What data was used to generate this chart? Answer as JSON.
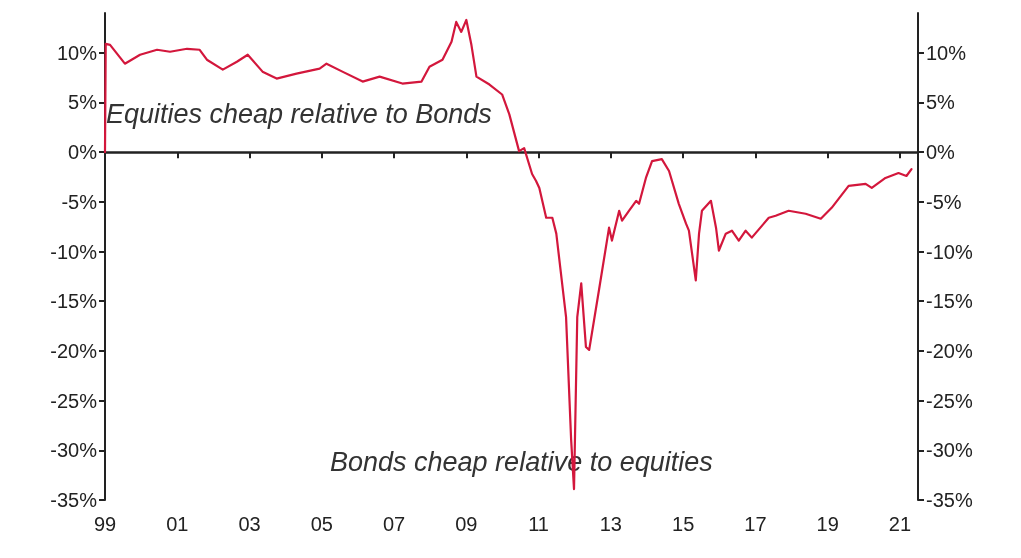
{
  "chart_data": {
    "type": "line",
    "annotations": [
      "Equities cheap relative to Bonds",
      "Bonds cheap relative to equities"
    ],
    "series": [
      {
        "color": "#d3173c",
        "x": [
          1999.0,
          1999.02,
          1999.14,
          1999.55,
          1999.97,
          2000.44,
          2000.8,
          2001.27,
          2001.62,
          2001.82,
          2002.26,
          2002.65,
          2002.95,
          2003.36,
          2003.75,
          2004.3,
          2004.94,
          2005.13,
          2005.57,
          2006.13,
          2006.6,
          2007.23,
          2007.76,
          2007.98,
          2008.34,
          2008.59,
          2008.72,
          2008.86,
          2009.0,
          2009.14,
          2009.28,
          2009.64,
          2009.99,
          2010.19,
          2010.46,
          2010.6,
          2010.82,
          2010.93,
          2011.02,
          2011.21,
          2011.38,
          2011.49,
          2011.76,
          2011.9,
          2011.98,
          2012.07,
          2012.18,
          2012.31,
          2012.4,
          2012.67,
          2012.95,
          2013.03,
          2013.23,
          2013.31,
          2013.5,
          2013.7,
          2013.78,
          2013.97,
          2014.14,
          2014.41,
          2014.61,
          2014.88,
          2015.08,
          2015.16,
          2015.35,
          2015.44,
          2015.52,
          2015.77,
          2015.91,
          2015.99,
          2016.18,
          2016.35,
          2016.54,
          2016.73,
          2016.9,
          2017.37,
          2017.56,
          2017.92,
          2018.39,
          2018.81,
          2019.11,
          2019.58,
          2020.05,
          2020.22,
          2020.6,
          2020.96,
          2021.18,
          2021.32
        ],
        "values": [
          0.0,
          10.9,
          10.8,
          8.9,
          9.8,
          10.3,
          10.1,
          10.4,
          10.3,
          9.3,
          8.3,
          9.1,
          9.8,
          8.1,
          7.4,
          7.9,
          8.4,
          8.9,
          8.1,
          7.1,
          7.6,
          6.9,
          7.1,
          8.6,
          9.3,
          11.1,
          13.1,
          12.1,
          13.3,
          10.8,
          7.6,
          6.8,
          5.8,
          3.8,
          0.1,
          0.4,
          -2.2,
          -2.9,
          -3.6,
          -6.6,
          -6.6,
          -8.2,
          -16.6,
          -28.9,
          -33.9,
          -16.6,
          -13.2,
          -19.6,
          -19.9,
          -13.9,
          -7.6,
          -8.9,
          -5.9,
          -6.9,
          -5.9,
          -4.9,
          -5.2,
          -2.6,
          -0.9,
          -0.7,
          -1.9,
          -5.2,
          -7.2,
          -7.9,
          -12.9,
          -8.2,
          -5.9,
          -4.9,
          -7.6,
          -9.9,
          -8.2,
          -7.9,
          -8.9,
          -7.9,
          -8.6,
          -6.6,
          -6.4,
          -5.9,
          -6.2,
          -6.7,
          -5.6,
          -3.4,
          -3.2,
          -3.6,
          -2.6,
          -2.1,
          -2.4,
          -1.7
        ]
      }
    ],
    "xlim": [
      1999,
      2021.5
    ],
    "xticks": [
      {
        "value": 1999,
        "label": "99"
      },
      {
        "value": 2001,
        "label": "01"
      },
      {
        "value": 2003,
        "label": "03"
      },
      {
        "value": 2005,
        "label": "05"
      },
      {
        "value": 2007,
        "label": "07"
      },
      {
        "value": 2009,
        "label": "09"
      },
      {
        "value": 2011,
        "label": "11"
      },
      {
        "value": 2013,
        "label": "13"
      },
      {
        "value": 2015,
        "label": "15"
      },
      {
        "value": 2017,
        "label": "17"
      },
      {
        "value": 2019,
        "label": "19"
      },
      {
        "value": 2021,
        "label": "21"
      }
    ],
    "ylim": [
      -35,
      14
    ],
    "yticks": [
      {
        "value": -35,
        "label": "-35%"
      },
      {
        "value": -30,
        "label": "-30%"
      },
      {
        "value": -25,
        "label": "-25%"
      },
      {
        "value": -20,
        "label": "-20%"
      },
      {
        "value": -15,
        "label": "-15%"
      },
      {
        "value": -10,
        "label": "-10%"
      },
      {
        "value": -5,
        "label": "-5%"
      },
      {
        "value": 0,
        "label": "0%"
      },
      {
        "value": 5,
        "label": "5%"
      },
      {
        "value": 10,
        "label": "10%"
      }
    ],
    "y2lim": [
      -35,
      14
    ],
    "y2ticks": [
      {
        "value": -35,
        "label": "-35%"
      },
      {
        "value": -30,
        "label": "-30%"
      },
      {
        "value": -25,
        "label": "-25%"
      },
      {
        "value": -20,
        "label": "-20%"
      },
      {
        "value": -15,
        "label": "-15%"
      },
      {
        "value": -10,
        "label": "-10%"
      },
      {
        "value": -5,
        "label": "-5%"
      },
      {
        "value": 0,
        "label": "0%"
      },
      {
        "value": 5,
        "label": "5%"
      },
      {
        "value": 10,
        "label": "10%"
      }
    ],
    "marker": "none",
    "line_style": "solid"
  }
}
